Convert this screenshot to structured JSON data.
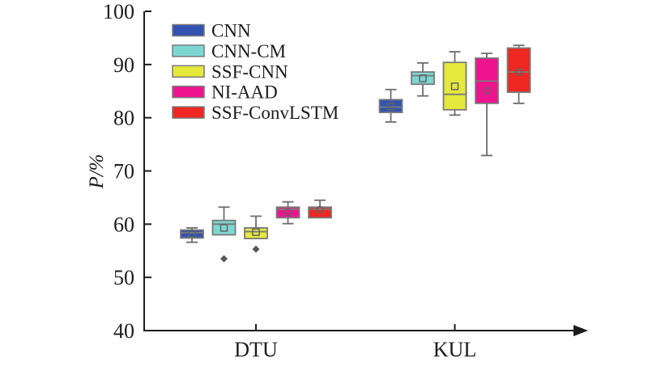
{
  "figure": {
    "background": "#ffffff"
  },
  "chart_data": {
    "type": "boxplot",
    "title": "",
    "xlabel": "",
    "ylabel": "P/%",
    "ylim": [
      40,
      100
    ],
    "yticks": [
      40,
      50,
      60,
      70,
      80,
      90,
      100
    ],
    "ytick_labels": [
      "40",
      "50",
      "60",
      "70",
      "80",
      "90",
      "100"
    ],
    "categories": [
      "DTU",
      "KUL"
    ],
    "grid": "off",
    "legend_position": "top-left-inside",
    "series": [
      {
        "name": "CNN",
        "color": "#3353b2",
        "mean_marker": "square",
        "boxes": [
          {
            "category": "DTU",
            "low": 56.6,
            "q1": 57.4,
            "median": 58.4,
            "q3": 58.9,
            "high": 59.3,
            "mean": 58.2,
            "outliers": []
          },
          {
            "category": "KUL",
            "low": 79.2,
            "q1": 81.0,
            "median": 82.0,
            "q3": 83.4,
            "high": 85.3,
            "mean": 82.1,
            "outliers": []
          }
        ]
      },
      {
        "name": "CNN-CM",
        "color": "#7cd7d3",
        "mean_marker": "square",
        "boxes": [
          {
            "category": "DTU",
            "low": 58.0,
            "q1": 58.0,
            "median": 60.0,
            "q3": 60.7,
            "high": 63.2,
            "mean": 59.3,
            "outliers": [
              53.5
            ]
          },
          {
            "category": "KUL",
            "low": 84.1,
            "q1": 86.3,
            "median": 87.9,
            "q3": 88.6,
            "high": 90.3,
            "mean": 87.4,
            "outliers": []
          }
        ]
      },
      {
        "name": "SSF-CNN",
        "color": "#e5e93b",
        "mean_marker": "square",
        "boxes": [
          {
            "category": "DTU",
            "low": 57.3,
            "q1": 57.3,
            "median": 58.6,
            "q3": 59.3,
            "high": 61.5,
            "mean": 58.5,
            "outliers": [
              55.3
            ]
          },
          {
            "category": "KUL",
            "low": 80.5,
            "q1": 81.5,
            "median": 84.4,
            "q3": 90.4,
            "high": 92.4,
            "mean": 85.9,
            "outliers": []
          }
        ]
      },
      {
        "name": "NI-AAD",
        "color": "#ee1490",
        "mean_marker": "circle",
        "boxes": [
          {
            "category": "DTU",
            "low": 60.1,
            "q1": 61.2,
            "median": 62.8,
            "q3": 63.2,
            "high": 64.2,
            "mean": 62.2,
            "outliers": []
          },
          {
            "category": "KUL",
            "low": 72.9,
            "q1": 82.7,
            "median": 86.9,
            "q3": 91.2,
            "high": 92.1,
            "mean": 85.1,
            "outliers": []
          }
        ]
      },
      {
        "name": "SSF-ConvLSTM",
        "color": "#ee2722",
        "mean_marker": "circle",
        "boxes": [
          {
            "category": "DTU",
            "low": 61.2,
            "q1": 61.2,
            "median": 62.8,
            "q3": 63.2,
            "high": 64.5,
            "mean": 62.7,
            "outliers": []
          },
          {
            "category": "KUL",
            "low": 82.7,
            "q1": 84.8,
            "median": 88.6,
            "q3": 93.1,
            "high": 93.6,
            "mean": 88.6,
            "outliers": []
          }
        ]
      }
    ],
    "style_colors": {
      "axis": "#1c1c1c",
      "box_stroke": "#7a7a7a",
      "whisker": "#6e6e6e",
      "median": "#7a7a7a",
      "mean_marker_stroke": "#636363",
      "outlier_fill": "#575757",
      "legend_swatch_stroke": "#7a7a7a"
    }
  }
}
